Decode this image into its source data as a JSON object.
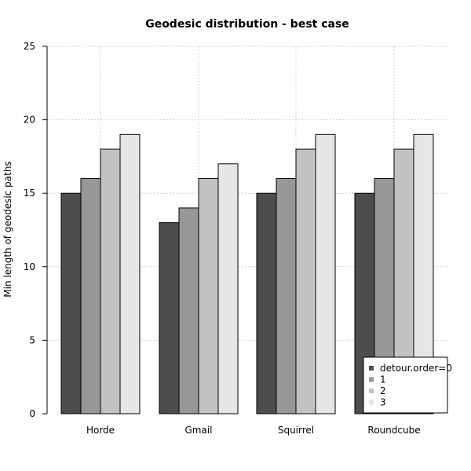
{
  "chart_data": {
    "type": "bar",
    "title": "Geodesic distribution - best case",
    "xlabel": "",
    "ylabel": "Min length of geodesic paths",
    "categories": [
      "Horde",
      "Gmail",
      "Squirrel",
      "Roundcube"
    ],
    "ylim": [
      0,
      25
    ],
    "yticks": [
      "0",
      "5",
      "10",
      "15",
      "20",
      "25"
    ],
    "grid": true,
    "legend_position": "bottom-right",
    "series": [
      {
        "name": "detour.order=0",
        "color": "#4d4d4d",
        "values": [
          15,
          13,
          15,
          15
        ]
      },
      {
        "name": "1",
        "color": "#979797",
        "values": [
          16,
          14,
          16,
          16
        ]
      },
      {
        "name": "2",
        "color": "#c2c2c2",
        "values": [
          18,
          16,
          18,
          18
        ]
      },
      {
        "name": "3",
        "color": "#e6e6e6",
        "values": [
          19,
          17,
          19,
          19
        ]
      }
    ]
  }
}
